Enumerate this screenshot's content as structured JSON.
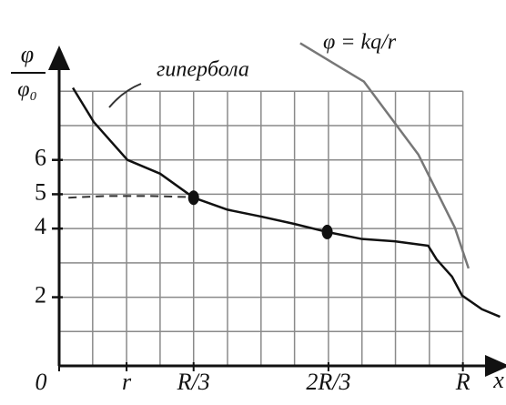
{
  "chart_data": {
    "type": "line",
    "y_label": {
      "numerator": "φ",
      "denominator": "φ₀"
    },
    "x_label": "x",
    "annotations": [
      "гипербола",
      "φ = kq/r"
    ],
    "xlim": [
      0,
      1.1
    ],
    "ylim": [
      0,
      10.5
    ],
    "xticks": [
      0,
      {
        "value": 0.167,
        "label": "r"
      },
      {
        "value": 0.333,
        "label": "R/3"
      },
      {
        "value": 0.667,
        "label": "2R/3"
      },
      {
        "value": 1,
        "label": "R"
      }
    ],
    "yticks": [
      2,
      4,
      5,
      6
    ],
    "grid": true,
    "xgrid": [
      0.083,
      0.167,
      0.25,
      0.333,
      0.417,
      0.5,
      0.583,
      0.667,
      0.75,
      0.833,
      0.917,
      1
    ],
    "ygrid": [
      1,
      2,
      3,
      4,
      5,
      6,
      7,
      8
    ],
    "series": [
      {
        "color": "#111",
        "dash": false,
        "x": [
          0.034,
          0.086,
          0.169,
          0.25,
          0.333,
          0.417,
          0.5,
          0.581,
          0.664,
          0.748,
          0.831,
          0.914,
          0.935,
          0.973,
          0.998,
          1.047,
          1.092
        ],
        "values": [
          8.1,
          7.1,
          6.0,
          5.6,
          4.9,
          4.55,
          4.35,
          4.14,
          3.9,
          3.7,
          3.63,
          3.5,
          3.1,
          2.6,
          2.05,
          1.65,
          1.43
        ]
      },
      {
        "color": "#333",
        "dash": true,
        "x": [
          0.023,
          0.12,
          0.22,
          0.315
        ],
        "values": [
          4.9,
          4.95,
          4.95,
          4.92
        ]
      },
      {
        "color": "#777",
        "dash": false,
        "x": [
          0.597,
          0.755,
          0.89,
          0.98,
          1.014
        ],
        "values": [
          9.4,
          8.28,
          6.15,
          4.03,
          2.84
        ]
      }
    ],
    "markers": {
      "color": "#111",
      "x": [
        0.333,
        0.664
      ],
      "values": [
        4.9,
        3.9
      ]
    }
  }
}
